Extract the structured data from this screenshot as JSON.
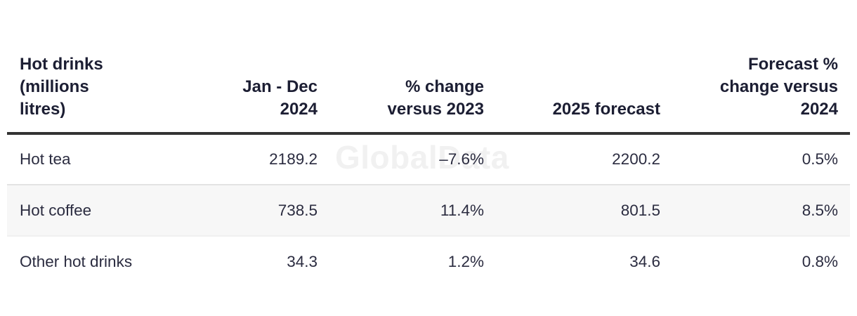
{
  "watermark": {
    "text": "GlobalData"
  },
  "table": {
    "columns": [
      {
        "name": "product",
        "lines": [
          "Hot drinks",
          "(millions",
          "litres)"
        ]
      },
      {
        "name": "jan_dec_2024",
        "lines": [
          "Jan - Dec",
          "2024"
        ]
      },
      {
        "name": "pct_change_versus_2023",
        "lines": [
          "% change",
          "versus 2023"
        ]
      },
      {
        "name": "forecast_2025",
        "lines": [
          "2025 forecast"
        ]
      },
      {
        "name": "forecast_pct_change_versus_2024",
        "lines": [
          "Forecast %",
          "change versus",
          "2024"
        ]
      }
    ],
    "rows": [
      {
        "cells": [
          "Hot tea",
          "2189.2",
          "–7.6%",
          "2200.2",
          "0.5%"
        ]
      },
      {
        "cells": [
          "Hot coffee",
          "738.5",
          "11.4%",
          "801.5",
          "8.5%"
        ]
      },
      {
        "cells": [
          "Other hot drinks",
          "34.3",
          "1.2%",
          "34.6",
          "0.8%"
        ]
      }
    ]
  },
  "colors": {
    "background": "#ffffff",
    "header_text": "#1c1e33",
    "body_text": "#2b2c40",
    "header_rule": "#333333",
    "row_divider": "#e3e3e3",
    "alt_row_bg": "#f7f7f7",
    "watermark": "#f1f1f1"
  },
  "chart_data": {
    "type": "table",
    "title": "Hot drinks (millions litres)",
    "columns": [
      "Hot drinks (millions litres)",
      "Jan - Dec 2024",
      "% change versus 2023",
      "2025 forecast",
      "Forecast % change versus 2024"
    ],
    "rows": [
      [
        "Hot tea",
        2189.2,
        -7.6,
        2200.2,
        0.5
      ],
      [
        "Hot coffee",
        738.5,
        11.4,
        801.5,
        8.5
      ],
      [
        "Other hot drinks",
        34.3,
        1.2,
        34.6,
        0.8
      ]
    ],
    "units": {
      "volume": "millions litres",
      "change": "percent"
    },
    "watermark": "GlobalData",
    "layout": "header row bottom-aligned, thick dark rule under header, zebra striping on second data row, numeric columns right-aligned"
  }
}
